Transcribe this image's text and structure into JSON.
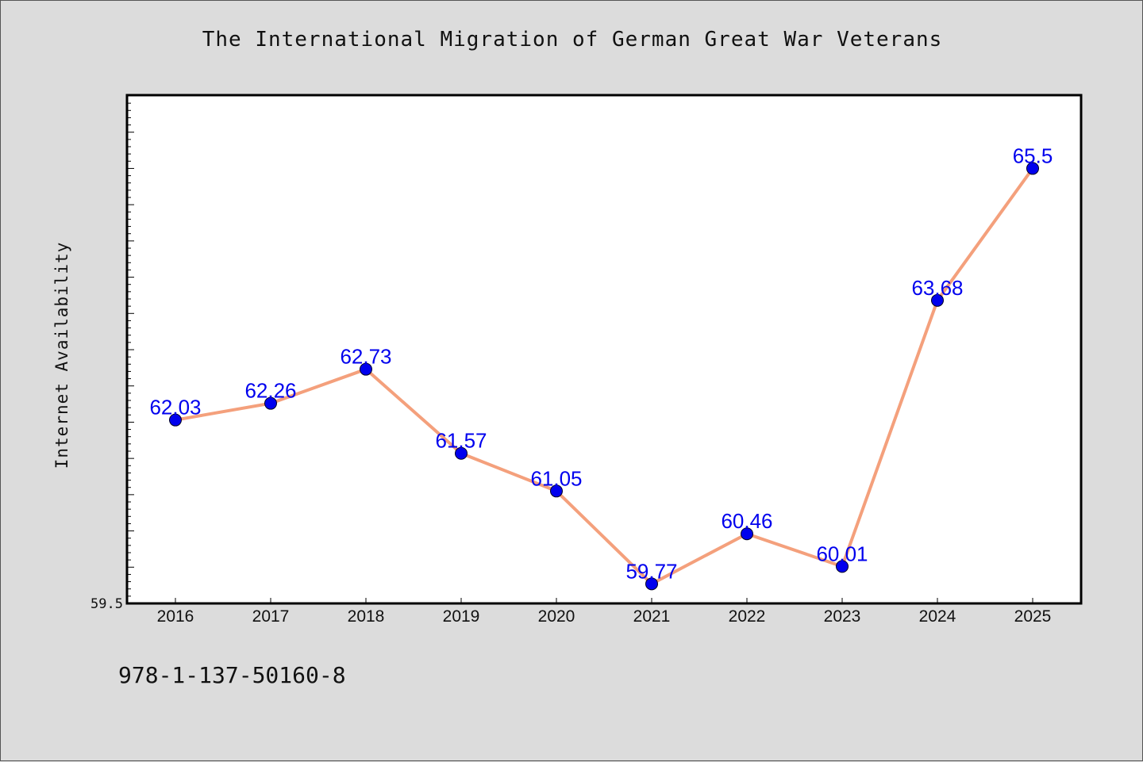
{
  "chart_data": {
    "type": "line",
    "title": "The International Migration of German Great War Veterans",
    "xlabel": "",
    "ylabel": "Internet Availability",
    "categories": [
      "2016",
      "2017",
      "2018",
      "2019",
      "2020",
      "2021",
      "2022",
      "2023",
      "2024",
      "2025"
    ],
    "series": [
      {
        "values": [
          62.03,
          62.26,
          62.73,
          61.57,
          61.05,
          59.77,
          60.46,
          60.01,
          63.68,
          65.5
        ],
        "labels": [
          "62.03",
          "62.26",
          "62.73",
          "61.57",
          "61.05",
          "59.77",
          "60.46",
          "60.01",
          "63.68",
          "65.5"
        ]
      }
    ],
    "ylim": [
      59.5,
      66.5
    ],
    "y_tick_labels": [
      "59.5"
    ],
    "grid": false,
    "legend": "none",
    "colors": {
      "line": "#f4a07c",
      "marker": "#0000ee",
      "data_label": "#0000ee",
      "plot_background": "#ffffff",
      "page_background": "#dcdcdc"
    }
  },
  "footer": {
    "code": "978-1-137-50160-8"
  }
}
